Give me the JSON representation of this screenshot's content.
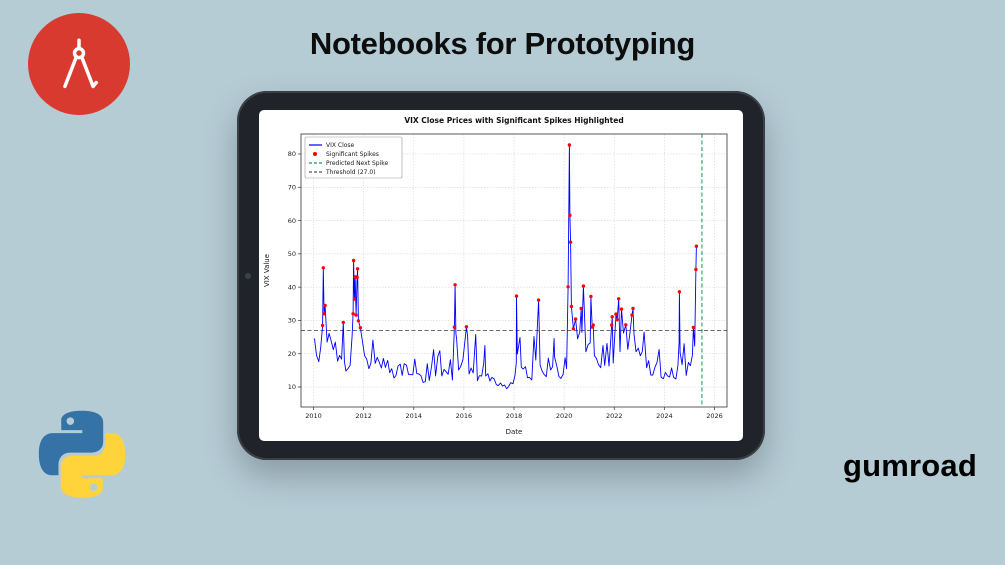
{
  "slide": {
    "title": "Notebooks for Prototyping",
    "brand_wordmark": "gumroad",
    "colors": {
      "background": "#b6ccd5",
      "badge": "#d83a30",
      "tablet_body": "#202329"
    }
  },
  "icons": {
    "badge_icon": "drafting-compass-icon",
    "footer_icon": "python-logo-icon"
  },
  "chart_data": {
    "type": "line",
    "title": "VIX Close Prices with Significant Spikes Highlighted",
    "xlabel": "Date",
    "ylabel": "VIX Value",
    "xlim": [
      2009.5,
      2026.5
    ],
    "ylim": [
      4,
      86
    ],
    "xticks": [
      2010,
      2012,
      2014,
      2016,
      2018,
      2020,
      2022,
      2024,
      2026
    ],
    "yticks": [
      10,
      20,
      30,
      40,
      50,
      60,
      70,
      80
    ],
    "grid": true,
    "legend_position": "upper-left",
    "threshold": 27.0,
    "predicted_next_spike_x": 2025.5,
    "colors": {
      "line": "#0000ff",
      "spike": "#ff0000",
      "predicted": "#129e4d",
      "threshold": "#555555"
    },
    "legend": [
      {
        "label": "VIX Close",
        "glyph": "line",
        "color": "#0000ff"
      },
      {
        "label": "Significant Spikes",
        "glyph": "dot",
        "color": "#ff0000"
      },
      {
        "label": "Predicted Next Spike",
        "glyph": "dash",
        "color": "#129e4d"
      },
      {
        "label": "Threshold (27.0)",
        "glyph": "dash",
        "color": "#555555"
      }
    ],
    "series_name": "VIX Close",
    "points": [
      [
        2010.04,
        24.6
      ],
      [
        2010.12,
        19.5
      ],
      [
        2010.21,
        17.6
      ],
      [
        2010.29,
        22.1
      ],
      [
        2010.36,
        28.5
      ],
      [
        2010.39,
        45.8
      ],
      [
        2010.42,
        32.0
      ],
      [
        2010.46,
        34.5
      ],
      [
        2010.54,
        23.5
      ],
      [
        2010.62,
        26.1
      ],
      [
        2010.71,
        23.7
      ],
      [
        2010.79,
        21.2
      ],
      [
        2010.87,
        23.5
      ],
      [
        2010.96,
        17.8
      ],
      [
        2011.04,
        19.5
      ],
      [
        2011.12,
        18.4
      ],
      [
        2011.19,
        29.4
      ],
      [
        2011.23,
        17.7
      ],
      [
        2011.29,
        14.8
      ],
      [
        2011.37,
        15.5
      ],
      [
        2011.46,
        16.5
      ],
      [
        2011.54,
        25.3
      ],
      [
        2011.58,
        32.0
      ],
      [
        2011.6,
        48.0
      ],
      [
        2011.63,
        36.4
      ],
      [
        2011.66,
        43.1
      ],
      [
        2011.7,
        31.6
      ],
      [
        2011.74,
        43.0
      ],
      [
        2011.76,
        45.5
      ],
      [
        2011.79,
        29.9
      ],
      [
        2011.87,
        27.8
      ],
      [
        2011.96,
        23.4
      ],
      [
        2012.04,
        19.4
      ],
      [
        2012.12,
        18.4
      ],
      [
        2012.21,
        15.5
      ],
      [
        2012.29,
        17.2
      ],
      [
        2012.37,
        24.1
      ],
      [
        2012.46,
        17.1
      ],
      [
        2012.54,
        18.9
      ],
      [
        2012.62,
        17.5
      ],
      [
        2012.71,
        15.7
      ],
      [
        2012.79,
        18.6
      ],
      [
        2012.87,
        15.9
      ],
      [
        2012.96,
        18.0
      ],
      [
        2013.04,
        14.3
      ],
      [
        2013.12,
        15.5
      ],
      [
        2013.21,
        12.7
      ],
      [
        2013.29,
        13.5
      ],
      [
        2013.37,
        16.3
      ],
      [
        2013.46,
        16.9
      ],
      [
        2013.54,
        13.5
      ],
      [
        2013.62,
        17.0
      ],
      [
        2013.71,
        16.6
      ],
      [
        2013.79,
        13.8
      ],
      [
        2013.87,
        13.7
      ],
      [
        2013.96,
        13.7
      ],
      [
        2014.04,
        18.4
      ],
      [
        2014.12,
        14.0
      ],
      [
        2014.21,
        13.9
      ],
      [
        2014.29,
        13.4
      ],
      [
        2014.37,
        11.4
      ],
      [
        2014.46,
        11.6
      ],
      [
        2014.54,
        17.0
      ],
      [
        2014.62,
        12.0
      ],
      [
        2014.71,
        16.3
      ],
      [
        2014.79,
        21.2
      ],
      [
        2014.87,
        13.3
      ],
      [
        2014.96,
        19.2
      ],
      [
        2015.04,
        20.9
      ],
      [
        2015.12,
        13.3
      ],
      [
        2015.21,
        15.3
      ],
      [
        2015.29,
        14.6
      ],
      [
        2015.37,
        13.8
      ],
      [
        2015.46,
        18.2
      ],
      [
        2015.54,
        12.1
      ],
      [
        2015.62,
        28.0
      ],
      [
        2015.65,
        40.7
      ],
      [
        2015.68,
        26.1
      ],
      [
        2015.71,
        24.5
      ],
      [
        2015.79,
        15.1
      ],
      [
        2015.87,
        16.1
      ],
      [
        2015.96,
        18.2
      ],
      [
        2016.04,
        23.7
      ],
      [
        2016.1,
        28.1
      ],
      [
        2016.15,
        25.4
      ],
      [
        2016.21,
        13.9
      ],
      [
        2016.29,
        15.7
      ],
      [
        2016.37,
        14.2
      ],
      [
        2016.47,
        25.8
      ],
      [
        2016.54,
        11.9
      ],
      [
        2016.62,
        13.4
      ],
      [
        2016.71,
        13.3
      ],
      [
        2016.79,
        17.1
      ],
      [
        2016.84,
        22.5
      ],
      [
        2016.87,
        13.3
      ],
      [
        2016.96,
        14.0
      ],
      [
        2017.04,
        11.8
      ],
      [
        2017.12,
        12.9
      ],
      [
        2017.21,
        12.4
      ],
      [
        2017.29,
        10.8
      ],
      [
        2017.37,
        10.4
      ],
      [
        2017.46,
        11.2
      ],
      [
        2017.54,
        10.3
      ],
      [
        2017.62,
        10.6
      ],
      [
        2017.71,
        9.5
      ],
      [
        2017.79,
        10.2
      ],
      [
        2017.87,
        11.3
      ],
      [
        2017.96,
        11.0
      ],
      [
        2018.04,
        13.5
      ],
      [
        2018.09,
        17.3
      ],
      [
        2018.1,
        37.3
      ],
      [
        2018.13,
        19.9
      ],
      [
        2018.24,
        24.9
      ],
      [
        2018.29,
        15.9
      ],
      [
        2018.37,
        15.4
      ],
      [
        2018.46,
        16.1
      ],
      [
        2018.54,
        12.8
      ],
      [
        2018.62,
        12.9
      ],
      [
        2018.71,
        12.1
      ],
      [
        2018.8,
        25.2
      ],
      [
        2018.87,
        18.1
      ],
      [
        2018.98,
        36.1
      ],
      [
        2019.04,
        16.6
      ],
      [
        2019.12,
        14.8
      ],
      [
        2019.21,
        13.7
      ],
      [
        2019.29,
        13.1
      ],
      [
        2019.37,
        18.7
      ],
      [
        2019.46,
        15.1
      ],
      [
        2019.54,
        16.1
      ],
      [
        2019.6,
        24.6
      ],
      [
        2019.62,
        19.0
      ],
      [
        2019.71,
        16.2
      ],
      [
        2019.79,
        13.2
      ],
      [
        2019.87,
        12.6
      ],
      [
        2019.96,
        13.8
      ],
      [
        2020.04,
        18.8
      ],
      [
        2020.1,
        15.5
      ],
      [
        2020.16,
        40.1
      ],
      [
        2020.21,
        82.7
      ],
      [
        2020.23,
        61.6
      ],
      [
        2020.26,
        53.5
      ],
      [
        2020.29,
        34.2
      ],
      [
        2020.37,
        27.5
      ],
      [
        2020.46,
        30.4
      ],
      [
        2020.54,
        24.5
      ],
      [
        2020.62,
        26.4
      ],
      [
        2020.68,
        33.6
      ],
      [
        2020.71,
        26.4
      ],
      [
        2020.77,
        40.3
      ],
      [
        2020.87,
        20.6
      ],
      [
        2020.96,
        22.8
      ],
      [
        2021.04,
        23.2
      ],
      [
        2021.07,
        37.2
      ],
      [
        2021.12,
        28.0
      ],
      [
        2021.16,
        28.6
      ],
      [
        2021.21,
        19.4
      ],
      [
        2021.29,
        18.6
      ],
      [
        2021.37,
        16.8
      ],
      [
        2021.46,
        15.8
      ],
      [
        2021.55,
        22.5
      ],
      [
        2021.62,
        16.5
      ],
      [
        2021.71,
        23.1
      ],
      [
        2021.79,
        16.3
      ],
      [
        2021.9,
        28.6
      ],
      [
        2021.92,
        31.1
      ],
      [
        2021.96,
        17.2
      ],
      [
        2022.07,
        31.9
      ],
      [
        2022.12,
        30.2
      ],
      [
        2022.18,
        36.5
      ],
      [
        2022.23,
        20.6
      ],
      [
        2022.29,
        33.4
      ],
      [
        2022.37,
        26.2
      ],
      [
        2022.46,
        28.7
      ],
      [
        2022.54,
        21.3
      ],
      [
        2022.62,
        25.9
      ],
      [
        2022.71,
        31.6
      ],
      [
        2022.75,
        33.6
      ],
      [
        2022.79,
        25.9
      ],
      [
        2022.87,
        20.6
      ],
      [
        2022.96,
        21.7
      ],
      [
        2023.04,
        19.4
      ],
      [
        2023.12,
        20.7
      ],
      [
        2023.19,
        26.5
      ],
      [
        2023.29,
        15.8
      ],
      [
        2023.37,
        17.9
      ],
      [
        2023.46,
        13.6
      ],
      [
        2023.54,
        13.6
      ],
      [
        2023.62,
        15.8
      ],
      [
        2023.71,
        17.5
      ],
      [
        2023.79,
        21.3
      ],
      [
        2023.87,
        12.9
      ],
      [
        2023.96,
        12.5
      ],
      [
        2024.04,
        14.4
      ],
      [
        2024.12,
        13.4
      ],
      [
        2024.21,
        13.0
      ],
      [
        2024.29,
        15.7
      ],
      [
        2024.37,
        12.9
      ],
      [
        2024.46,
        12.4
      ],
      [
        2024.54,
        16.4
      ],
      [
        2024.59,
        23.4
      ],
      [
        2024.6,
        38.6
      ],
      [
        2024.63,
        20.4
      ],
      [
        2024.71,
        16.7
      ],
      [
        2024.79,
        23.0
      ],
      [
        2024.87,
        13.5
      ],
      [
        2024.96,
        17.4
      ],
      [
        2025.04,
        16.4
      ],
      [
        2025.12,
        19.6
      ],
      [
        2025.16,
        27.9
      ],
      [
        2025.21,
        22.3
      ],
      [
        2025.26,
        45.3
      ],
      [
        2025.28,
        52.3
      ]
    ]
  }
}
